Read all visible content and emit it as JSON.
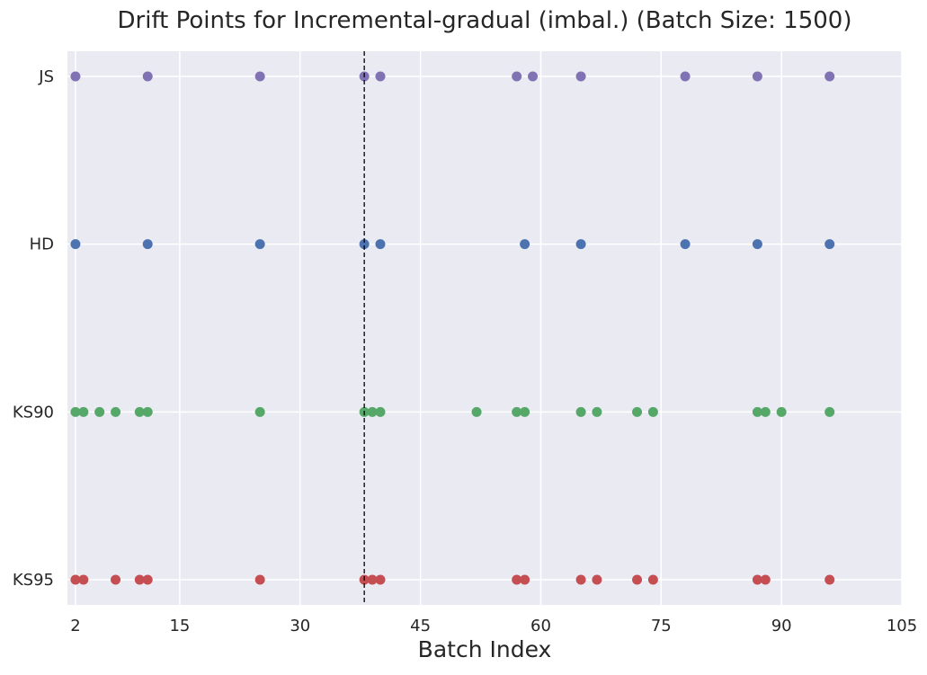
{
  "chart_data": {
    "type": "scatter",
    "title": "Drift Points for Incremental-gradual (imbal.) (Batch Size: 1500)",
    "xlabel": "Batch Index",
    "ylabel": "",
    "xlim": [
      1,
      105
    ],
    "xticks": [
      2,
      15,
      30,
      45,
      60,
      75,
      90,
      105
    ],
    "xtick_labels": [
      "2",
      "15",
      "30",
      "45",
      "60",
      "75",
      "90",
      "105"
    ],
    "categories": [
      "KS95",
      "KS90",
      "HD",
      "JS"
    ],
    "grid": true,
    "vline": {
      "x": 38,
      "style": "dashed",
      "color": "#000000"
    },
    "series": [
      {
        "category": "JS",
        "color": "#8172b3",
        "x": [
          2,
          11,
          25,
          38,
          40,
          57,
          59,
          65,
          78,
          87,
          96
        ]
      },
      {
        "category": "HD",
        "color": "#4c72b0",
        "x": [
          2,
          11,
          25,
          38,
          40,
          58,
          65,
          78,
          87,
          96
        ]
      },
      {
        "category": "KS90",
        "color": "#55a868",
        "x": [
          2,
          3,
          5,
          7,
          10,
          11,
          25,
          38,
          39,
          40,
          52,
          57,
          58,
          65,
          67,
          72,
          74,
          87,
          88,
          90,
          96
        ]
      },
      {
        "category": "KS95",
        "color": "#c44e52",
        "x": [
          2,
          3,
          7,
          10,
          11,
          25,
          38,
          39,
          40,
          57,
          58,
          65,
          67,
          72,
          74,
          87,
          88,
          96
        ]
      }
    ],
    "colors": {
      "background": "#eaeaf2",
      "grid": "#ffffff"
    }
  }
}
